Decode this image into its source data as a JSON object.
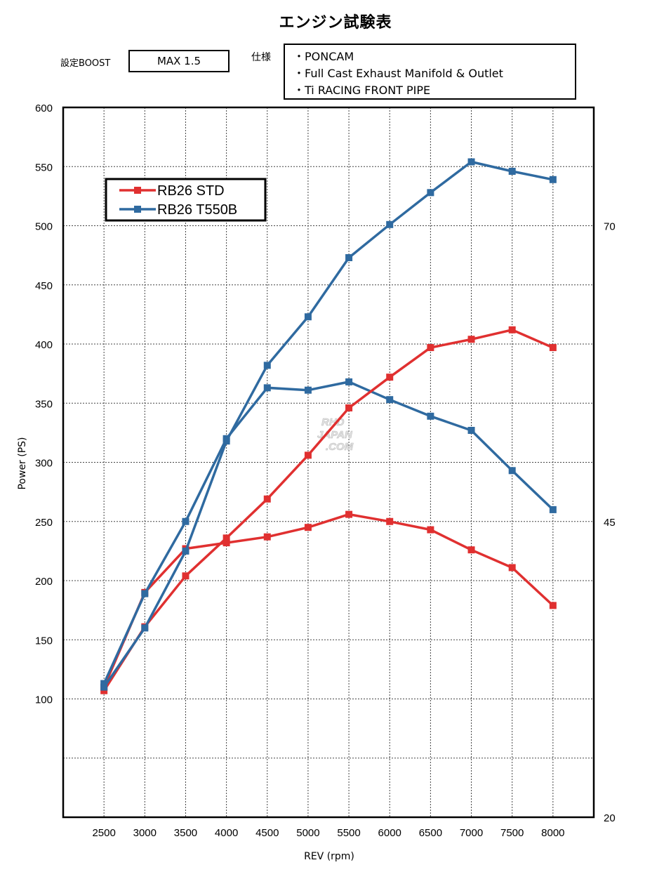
{
  "title": "エンジン試験表",
  "boost": {
    "label": "設定BOOST",
    "value": "MAX 1.5"
  },
  "spec": {
    "label": "仕様",
    "items": [
      "・PONCAM",
      "・Full Cast Exhaust Manifold & Outlet",
      "・Ti RACING FRONT PIPE"
    ]
  },
  "watermark": [
    "RHD",
    "JAPAN",
    ".COM"
  ],
  "colors": {
    "std": "#e03030",
    "t550b": "#2f6aa0",
    "grid": "#444444"
  },
  "chart_data": {
    "type": "line",
    "xlabel": "REV (rpm)",
    "ylabel": "Power (PS)",
    "x": [
      2500,
      3000,
      3500,
      4000,
      4500,
      5000,
      5500,
      6000,
      6500,
      7000,
      7500,
      8000
    ],
    "xlim": [
      2000,
      8500
    ],
    "ylim": [
      0,
      600
    ],
    "yticks": [
      100,
      150,
      200,
      250,
      300,
      350,
      400,
      450,
      500,
      550,
      600
    ],
    "y2lim": [
      20,
      80
    ],
    "y2ticks": [
      20,
      45,
      70
    ],
    "grid": true,
    "legend_position": "top-left",
    "power_series": [
      {
        "name": "RB26 STD",
        "color": "#e03030",
        "values": [
          107,
          161,
          204,
          236,
          269,
          306,
          346,
          372,
          397,
          404,
          412,
          397
        ]
      },
      {
        "name": "RB26 T550B",
        "color": "#2f6aa0",
        "values": [
          110,
          160,
          225,
          318,
          382,
          423,
          473,
          501,
          528,
          554,
          546,
          539
        ]
      }
    ],
    "torque_series": [
      {
        "color": "#e03030",
        "values": [
          31.0,
          39.0,
          42.7,
          43.2,
          43.7,
          44.5,
          45.6,
          45.0,
          44.3,
          42.6,
          41.1,
          37.9
        ]
      },
      {
        "color": "#2f6aa0",
        "values": [
          31.3,
          38.9,
          45.0,
          52.0,
          56.3,
          56.1,
          56.8,
          55.3,
          53.9,
          52.7,
          49.3,
          46.0
        ]
      }
    ]
  }
}
